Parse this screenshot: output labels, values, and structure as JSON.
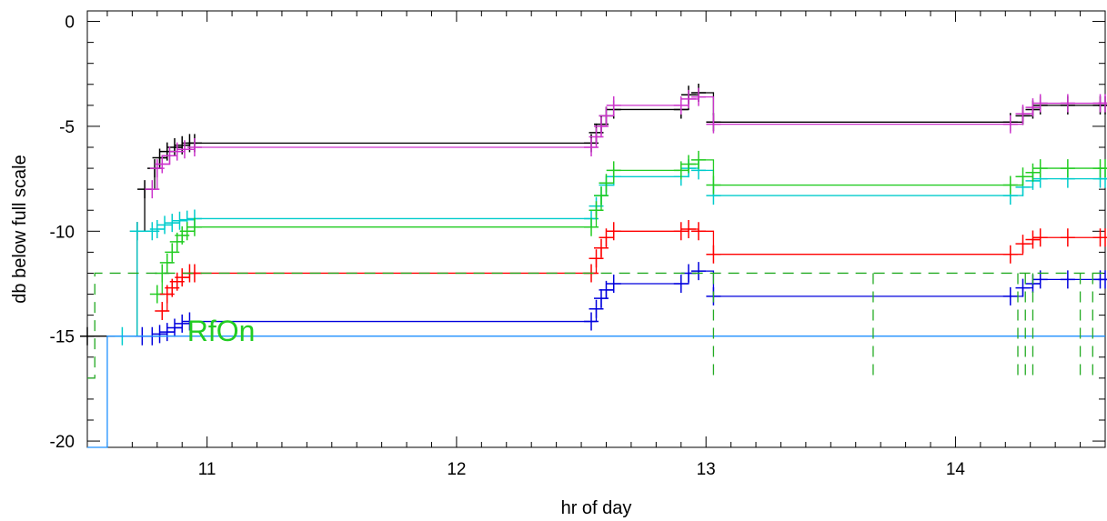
{
  "chart_data": {
    "type": "line",
    "xlabel": "hr of day",
    "ylabel": "db below full scale",
    "xlim": [
      10.52,
      14.6
    ],
    "ylim": [
      -20.3,
      0.5
    ],
    "x_ticks": [
      11,
      12,
      13,
      14
    ],
    "y_ticks": [
      0,
      -5,
      -10,
      -15,
      -20
    ],
    "x_tick_labels": [
      "11",
      "12",
      "13",
      "14"
    ],
    "y_tick_labels": [
      "0",
      "-5",
      "-10",
      "-15",
      "-20"
    ],
    "grid": false,
    "annotations": [
      {
        "text": "RfOn",
        "x": 10.92,
        "y": -14.7,
        "color": "#22cc22"
      }
    ],
    "series": [
      {
        "color": "#000000",
        "style": "step",
        "markers": true,
        "x": [
          10.52,
          10.72,
          10.75,
          10.79,
          10.81,
          10.84,
          10.87,
          10.9,
          10.93,
          10.95,
          12.54,
          12.56,
          12.58,
          12.6,
          12.63,
          12.9,
          12.93,
          12.97,
          13.03,
          14.22,
          14.27,
          14.31,
          14.34,
          14.45,
          14.58,
          14.6
        ],
        "y": [
          -15,
          -10,
          -8,
          -7,
          -6.5,
          -6.2,
          -6,
          -5.9,
          -5.8,
          -5.8,
          -5.8,
          -5.3,
          -4.9,
          -4.5,
          -4.2,
          -4.2,
          -3.5,
          -3.4,
          -4.8,
          -4.8,
          -4.5,
          -4.2,
          -4.0,
          -4.0,
          -4.0,
          -4.0
        ]
      },
      {
        "color": "#cc33cc",
        "style": "step",
        "markers": true,
        "x": [
          10.78,
          10.8,
          10.82,
          10.85,
          10.88,
          10.91,
          10.95,
          12.54,
          12.56,
          12.58,
          12.6,
          12.63,
          12.9,
          12.93,
          12.97,
          13.03,
          14.22,
          14.27,
          14.31,
          14.34,
          14.45,
          14.58,
          14.6
        ],
        "y": [
          -8,
          -7,
          -6.8,
          -6.4,
          -6.2,
          -6.1,
          -6.0,
          -6.0,
          -5.5,
          -5.0,
          -4.5,
          -4.0,
          -4.0,
          -3.7,
          -3.6,
          -4.9,
          -4.9,
          -4.4,
          -4.1,
          -3.9,
          -3.9,
          -3.9,
          -3.9
        ]
      },
      {
        "color": "#00cccc",
        "style": "step",
        "markers": true,
        "x": [
          10.66,
          10.72,
          10.78,
          10.8,
          10.83,
          10.86,
          10.89,
          10.92,
          10.95,
          12.54,
          12.56,
          12.58,
          12.6,
          12.63,
          12.9,
          12.93,
          12.97,
          13.03,
          14.22,
          14.27,
          14.31,
          14.34,
          14.45,
          14.58,
          14.6
        ],
        "y": [
          -15,
          -10,
          -10,
          -9.9,
          -9.7,
          -9.6,
          -9.5,
          -9.45,
          -9.4,
          -9.4,
          -8.8,
          -8.3,
          -7.8,
          -7.4,
          -7.4,
          -7.0,
          -7.1,
          -8.3,
          -8.3,
          -7.9,
          -7.6,
          -7.5,
          -7.5,
          -7.5,
          -7.5
        ]
      },
      {
        "color": "#22cc22",
        "style": "step",
        "markers": true,
        "x": [
          10.8,
          10.82,
          10.84,
          10.86,
          10.88,
          10.9,
          10.92,
          10.95,
          12.54,
          12.56,
          12.58,
          12.6,
          12.63,
          12.9,
          12.93,
          12.97,
          13.03,
          14.22,
          14.27,
          14.31,
          14.34,
          14.45,
          14.58,
          14.6
        ],
        "y": [
          -13,
          -12,
          -11.5,
          -11,
          -10.5,
          -10.2,
          -10,
          -9.8,
          -9.8,
          -9.0,
          -8.3,
          -7.7,
          -7.1,
          -7.1,
          -6.8,
          -6.6,
          -7.8,
          -7.8,
          -7.4,
          -7.2,
          -7.0,
          -7.0,
          -7.0,
          -7.0
        ]
      },
      {
        "color": "#ff0000",
        "style": "step",
        "markers": true,
        "x": [
          10.82,
          10.84,
          10.86,
          10.88,
          10.9,
          10.93,
          10.95,
          12.54,
          12.56,
          12.58,
          12.6,
          12.63,
          12.9,
          12.93,
          12.97,
          13.03,
          14.22,
          14.27,
          14.31,
          14.34,
          14.45,
          14.58,
          14.6
        ],
        "y": [
          -13.8,
          -13,
          -12.7,
          -12.4,
          -12.2,
          -12.0,
          -12.0,
          -12.0,
          -11.3,
          -10.8,
          -10.3,
          -10.0,
          -10.0,
          -9.9,
          -10.0,
          -11.1,
          -11.1,
          -10.6,
          -10.4,
          -10.3,
          -10.3,
          -10.3,
          -10.3
        ]
      },
      {
        "color": "#0000dd",
        "style": "step",
        "markers": true,
        "x": [
          10.74,
          10.78,
          10.81,
          10.84,
          10.87,
          10.9,
          10.93,
          12.54,
          12.56,
          12.58,
          12.6,
          12.63,
          12.9,
          12.93,
          12.97,
          13.03,
          14.22,
          14.27,
          14.31,
          14.34,
          14.45,
          14.58,
          14.6
        ],
        "y": [
          -15,
          -15,
          -14.9,
          -14.8,
          -14.6,
          -14.4,
          -14.3,
          -14.3,
          -13.7,
          -13.2,
          -12.8,
          -12.5,
          -12.5,
          -12.0,
          -11.9,
          -13.1,
          -13.1,
          -12.7,
          -12.5,
          -12.3,
          -12.3,
          -12.3,
          -12.3
        ]
      },
      {
        "color": "#1e90ff",
        "style": "step",
        "markers": false,
        "x": [
          10.52,
          10.59,
          10.6,
          10.64,
          10.66,
          14.6
        ],
        "y": [
          -20.3,
          -20.3,
          -15,
          -15,
          -15,
          -15
        ]
      },
      {
        "color": "#22aa22",
        "style": "dashed",
        "markers": false,
        "x": [
          10.52,
          10.55,
          10.57,
          14.6
        ],
        "y": [
          -17,
          -12,
          -12,
          -12
        ],
        "drops": [
          13.03,
          13.67,
          14.25,
          14.28,
          14.31,
          14.5,
          14.55
        ],
        "drop_to": -17
      }
    ]
  }
}
